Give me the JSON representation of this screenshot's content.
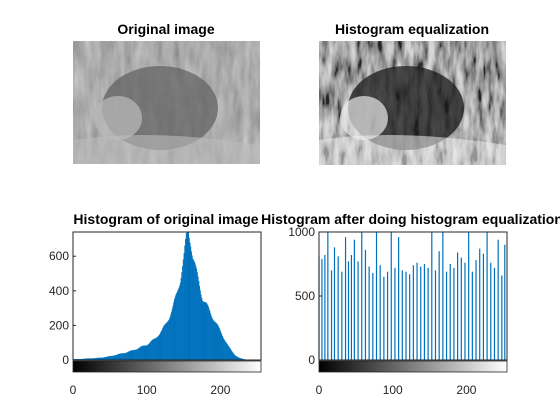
{
  "colors": {
    "bar": "#0072bd",
    "axis": "#262626",
    "background": "#ffffff"
  },
  "images": [
    {
      "title": "Original image",
      "variant": "original"
    },
    {
      "title": "Histogram equalization",
      "variant": "equalized"
    }
  ],
  "chart_data": [
    {
      "type": "bar",
      "title": "Histogram of original image",
      "xlabel": "",
      "ylabel": "",
      "xlim": [
        0,
        255
      ],
      "ylim": [
        0,
        740
      ],
      "x_ticks": [
        0,
        100,
        200
      ],
      "y_ticks": [
        0,
        200,
        400,
        600
      ],
      "colorbar": "gray",
      "bins": [
        [
          0,
          5
        ],
        [
          10,
          6
        ],
        [
          20,
          9
        ],
        [
          30,
          11
        ],
        [
          40,
          15
        ],
        [
          50,
          22
        ],
        [
          60,
          32
        ],
        [
          70,
          42
        ],
        [
          80,
          55
        ],
        [
          90,
          72
        ],
        [
          100,
          90
        ],
        [
          110,
          120
        ],
        [
          120,
          170
        ],
        [
          125,
          205
        ],
        [
          130,
          250
        ],
        [
          135,
          305
        ],
        [
          140,
          380
        ],
        [
          145,
          470
        ],
        [
          150,
          600
        ],
        [
          153,
          700
        ],
        [
          156,
          740
        ],
        [
          159,
          690
        ],
        [
          162,
          600
        ],
        [
          166,
          520
        ],
        [
          170,
          450
        ],
        [
          175,
          360
        ],
        [
          180,
          320
        ],
        [
          185,
          280
        ],
        [
          190,
          240
        ],
        [
          195,
          200
        ],
        [
          200,
          160
        ],
        [
          205,
          120
        ],
        [
          210,
          80
        ],
        [
          215,
          50
        ],
        [
          220,
          25
        ],
        [
          225,
          12
        ],
        [
          230,
          6
        ],
        [
          235,
          2
        ],
        [
          240,
          0
        ],
        [
          255,
          0
        ]
      ]
    },
    {
      "type": "bar",
      "title": "Histogram after doing histogram equalization",
      "xlabel": "",
      "ylabel": "",
      "xlim": [
        0,
        255
      ],
      "ylim": [
        0,
        1000
      ],
      "x_ticks": [
        0,
        100,
        200
      ],
      "y_ticks": [
        0,
        500,
        1000
      ],
      "colorbar": "gray",
      "x": [
        0,
        4,
        8,
        12,
        17,
        21,
        26,
        31,
        36,
        40,
        44,
        48,
        53,
        58,
        63,
        68,
        73,
        78,
        83,
        88,
        93,
        98,
        103,
        108,
        113,
        118,
        123,
        128,
        133,
        138,
        143,
        148,
        153,
        158,
        163,
        168,
        173,
        178,
        183,
        188,
        193,
        198,
        203,
        208,
        213,
        218,
        223,
        228,
        233,
        238,
        243,
        248,
        252
      ],
      "values": [
        810,
        790,
        820,
        1000,
        700,
        880,
        810,
        690,
        960,
        770,
        820,
        940,
        770,
        1000,
        860,
        730,
        680,
        1000,
        740,
        650,
        690,
        1000,
        720,
        960,
        700,
        690,
        670,
        740,
        760,
        730,
        750,
        720,
        1000,
        700,
        850,
        1000,
        690,
        750,
        720,
        840,
        800,
        760,
        1000,
        690,
        780,
        870,
        830,
        1000,
        760,
        720,
        940,
        660,
        900
      ]
    }
  ]
}
